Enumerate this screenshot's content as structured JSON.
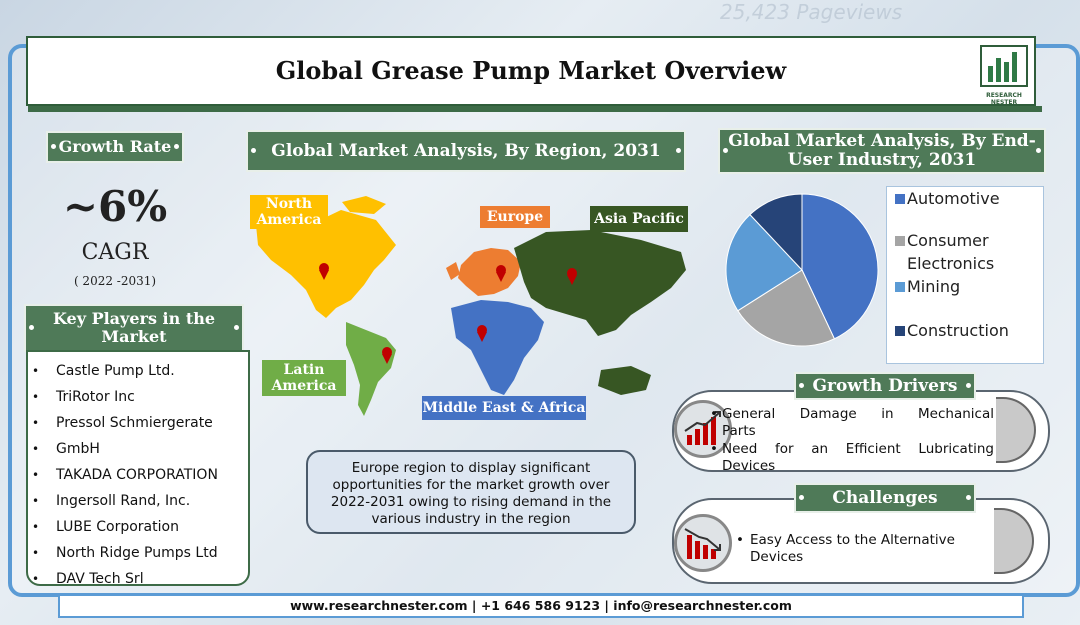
{
  "title": "Global Grease Pump Market Overview",
  "logo": {
    "text": "RESEARCH NESTER"
  },
  "growth": {
    "label": "Growth Rate",
    "value": "~6%",
    "unit": "CAGR",
    "years": "( 2022 -2031)"
  },
  "players": {
    "title": "Key Players in the Market",
    "items": [
      "Castle Pump Ltd.",
      "TriRotor Inc",
      "Pressol Schmiergerate",
      "GmbH",
      "TAKADA CORPORATION",
      "Ingersoll Rand, Inc.",
      "LUBE Corporation",
      "North Ridge Pumps Ltd",
      "DAV Tech Srl"
    ]
  },
  "region": {
    "title": "Global Market Analysis, By Region, 2031",
    "labels": {
      "north_america": "North America",
      "europe": "Europe",
      "asia_pacific": "Asia Pacific",
      "latin_america": "Latin America",
      "mea": "Middle East & Africa"
    },
    "colors": {
      "north_america": "#ffc000",
      "europe": "#ed7d31",
      "asia_pacific": "#375623",
      "latin_america": "#70ad47",
      "mea": "#4472c4"
    },
    "note": "Europe region to display significant opportunities for the market growth over 2022-2031 owing to rising demand in the various industry in the region"
  },
  "enduser": {
    "title": "Global Market Analysis, By End-User Industry, 2031",
    "legend": [
      "Automotive",
      "Consumer Electronics",
      "Mining",
      "Construction"
    ],
    "colors": [
      "#4472c4",
      "#a5a5a5",
      "#5b9bd5",
      "#264478"
    ]
  },
  "chart_data": {
    "type": "pie",
    "title": "Global Market Analysis, By End-User Industry, 2031",
    "categories": [
      "Automotive",
      "Consumer Electronics",
      "Mining",
      "Construction"
    ],
    "values": [
      43,
      23,
      22,
      12
    ]
  },
  "drivers": {
    "title": "Growth Drivers",
    "items": [
      "General Damage in Mechanical Parts",
      "Need for an Efficient Lubricating Devices"
    ]
  },
  "challenges": {
    "title": "Challenges",
    "items": [
      "Easy Access to the Alternative Devices"
    ]
  },
  "footer": "www.researchnester.com | +1 646 586 9123 | info@researchnester.com"
}
